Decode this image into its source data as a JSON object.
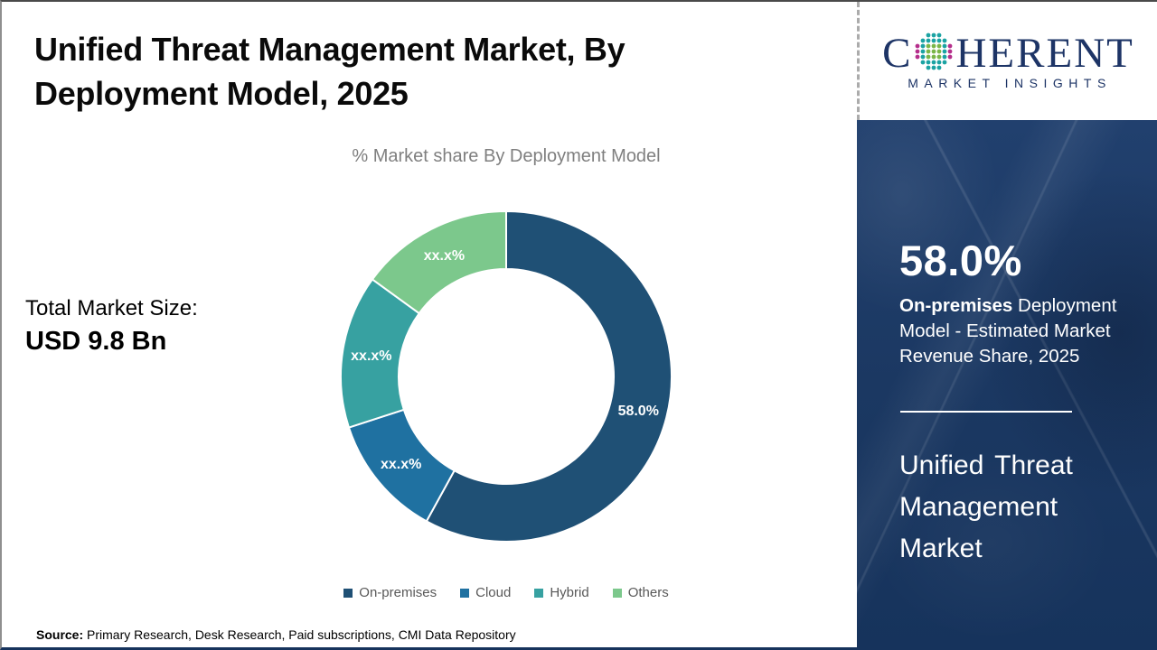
{
  "page": {
    "title_lines": [
      "Unified Threat Management Market, By",
      "Deployment Model, 2025"
    ],
    "chart_subtitle": "% Market share By Deployment Model",
    "total_market_label": "Total Market Size:",
    "total_market_value": "USD 9.8 Bn",
    "source_label": "Source:",
    "source_text": " Primary Research, Desk Research, Paid subscriptions, CMI Data Repository"
  },
  "logo": {
    "brand_prefix": "C",
    "brand_suffix": "HERENT",
    "brand_subtitle": "MARKET INSIGHTS",
    "colors": {
      "navy": "#1d3466",
      "teal": "#1ba3a3",
      "green": "#7ab648",
      "magenta": "#b52e8b"
    }
  },
  "side_panel": {
    "bg_color": "#1c3a64",
    "stat_value": "58.0%",
    "stat_desc_bold": "On-premises",
    "stat_desc_rest": " Deployment Model - Estimated Market Revenue Share, 2025",
    "market_name_lines": [
      "Unified Threat",
      "Management",
      "Market"
    ]
  },
  "chart_data": {
    "type": "pie",
    "subtype": "doughnut",
    "title": "% Market share By Deployment Model",
    "start_angle_deg": 0,
    "direction": "clockwise",
    "inner_radius_ratio": 0.65,
    "legend_position": "bottom",
    "categories": [
      "On-premises",
      "Cloud",
      "Hybrid",
      "Others"
    ],
    "values": [
      58.0,
      12.0,
      15.0,
      15.0
    ],
    "value_note": "On-premises labeled 58.0%; other slice labels masked as xx.x% (sizes estimated from arc angles)",
    "segments": [
      {
        "label": "On-premises",
        "value": 58.0,
        "display": "58.0%",
        "color": "#1f5075"
      },
      {
        "label": "Cloud",
        "value": 12.0,
        "display": "xx.x%",
        "color": "#1f71a1"
      },
      {
        "label": "Hybrid",
        "value": 15.0,
        "display": "xx.x%",
        "color": "#37a1a1"
      },
      {
        "label": "Others",
        "value": 15.0,
        "display": "xx.x%",
        "color": "#7cc88c"
      }
    ]
  }
}
